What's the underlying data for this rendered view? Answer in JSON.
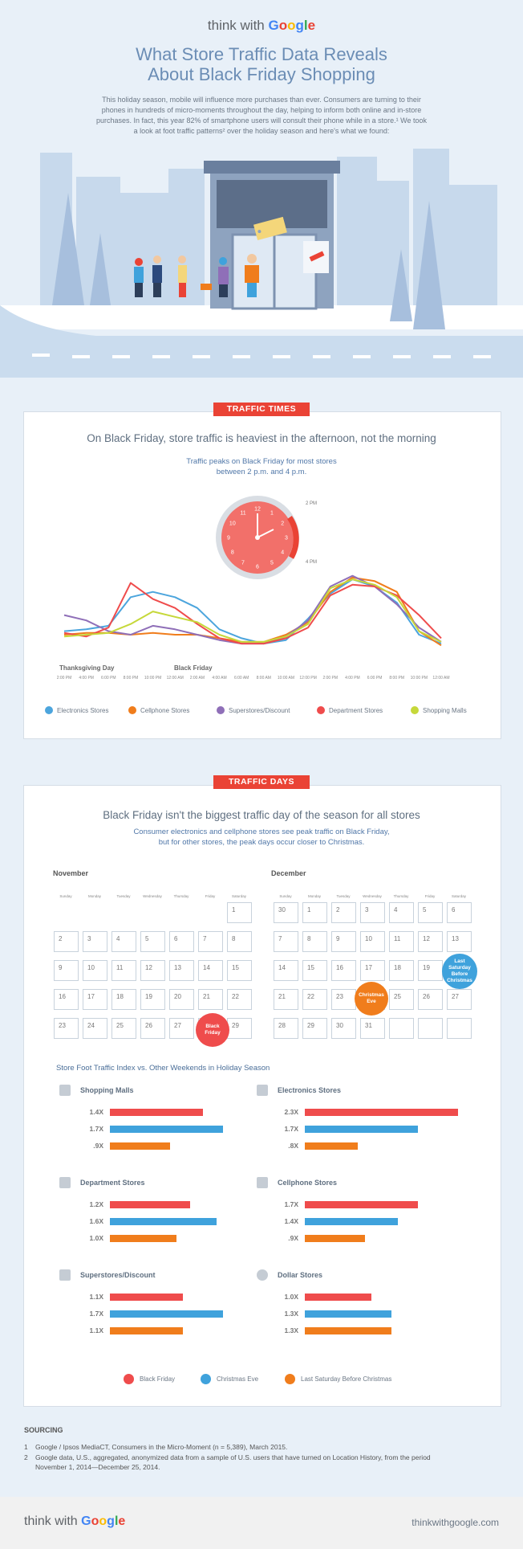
{
  "header": {
    "brand_prefix": "think with ",
    "brand_name": "Google"
  },
  "title": [
    "What Store Traffic Data Reveals",
    "About Black Friday Shopping"
  ],
  "intro": "This holiday season, mobile will influence more purchases than ever. Consumers are turning to their phones in hundreds of micro-moments throughout the day, helping to inform both online and in-store purchases. In fact, this year 82% of smartphone users will consult their phone while in a store.¹ We took a look at foot traffic patterns² over the holiday season and here's what we found:",
  "colors": {
    "electronics": "#4ca5dd",
    "cellphone": "#f07d1c",
    "superstores": "#8f6fb8",
    "department": "#ef4c4c",
    "malls": "#c6d83a",
    "blue_bar": "#3fa2dc"
  },
  "traffic_times": {
    "tag": "TRAFFIC TIMES",
    "headline": "On Black Friday, store traffic is heaviest in the afternoon, not the morning",
    "subline": [
      "Traffic peaks on Black Friday for most stores",
      "between 2 p.m. and 4 p.m."
    ],
    "clock": {
      "label_2pm": "2 PM",
      "label_4pm": "4 PM",
      "numbers": [
        "12",
        "1",
        "2",
        "3",
        "4",
        "5",
        "6",
        "7",
        "8",
        "9",
        "10",
        "11"
      ]
    },
    "day_labels": [
      "Thanksgiving Day",
      "Black Friday"
    ]
  },
  "chart_data": {
    "type": "line",
    "x": [
      "2:00 PM",
      "4:00 PM",
      "6:00 PM",
      "8:00 PM",
      "10:00 PM",
      "12:00 AM",
      "2:00 AM",
      "4:00 AM",
      "6:00 AM",
      "8:00 AM",
      "10:00 AM",
      "12:00 PM",
      "2:00 PM",
      "4:00 PM",
      "6:00 PM",
      "8:00 PM",
      "10:00 PM",
      "12:00 AM"
    ],
    "series": [
      {
        "name": "Electronics Stores",
        "values": [
          11,
          12,
          14,
          30,
          33,
          30,
          24,
          12,
          7,
          4,
          6,
          18,
          32,
          40,
          36,
          27,
          9,
          4
        ]
      },
      {
        "name": "Cellphone Stores",
        "values": [
          9,
          10,
          10,
          9,
          10,
          9,
          9,
          7,
          5,
          5,
          9,
          16,
          33,
          41,
          39,
          33,
          11,
          3
        ]
      },
      {
        "name": "Superstores/Discount",
        "values": [
          20,
          17,
          11,
          9,
          14,
          12,
          9,
          6,
          4,
          4,
          8,
          17,
          36,
          42,
          36,
          26,
          13,
          5
        ]
      },
      {
        "name": "Department Stores",
        "values": [
          10,
          8,
          13,
          38,
          29,
          24,
          15,
          7,
          4,
          4,
          7,
          13,
          31,
          37,
          36,
          31,
          20,
          7
        ]
      },
      {
        "name": "Shopping Malls",
        "values": [
          8,
          9,
          10,
          15,
          22,
          19,
          16,
          9,
          5,
          5,
          8,
          15,
          35,
          40,
          37,
          30,
          11,
          5
        ]
      }
    ],
    "ylim": [
      0,
      45
    ]
  },
  "traffic_days": {
    "tag": "TRAFFIC DAYS",
    "headline": "Black Friday isn't the biggest traffic day of the season for all stores",
    "subline": [
      "Consumer electronics and cellphone stores see peak traffic on Black Friday,",
      "but for other stores, the peak days occur closer to Christmas."
    ],
    "november": {
      "label": "November",
      "weekdays": [
        "Sunday",
        "Monday",
        "Tuesday",
        "Wednesday",
        "Thursday",
        "Friday",
        "Saturday"
      ],
      "days": [
        "",
        "",
        "",
        "",
        "",
        "",
        "1",
        "2",
        "3",
        "4",
        "5",
        "6",
        "7",
        "8",
        "9",
        "10",
        "11",
        "12",
        "13",
        "14",
        "15",
        "16",
        "17",
        "18",
        "19",
        "20",
        "21",
        "22",
        "23",
        "24",
        "25",
        "26",
        "27",
        "",
        "29"
      ]
    },
    "december": {
      "label": "December",
      "weekdays": [
        "Sunday",
        "Monday",
        "Tuesday",
        "Wednesday",
        "Thursday",
        "Friday",
        "Saturday"
      ],
      "days": [
        "30",
        "1",
        "2",
        "3",
        "4",
        "5",
        "6",
        "7",
        "8",
        "9",
        "10",
        "11",
        "12",
        "13",
        "14",
        "15",
        "16",
        "17",
        "18",
        "19",
        "",
        "21",
        "22",
        "23",
        "",
        "25",
        "26",
        "27",
        "28",
        "29",
        "30",
        "31",
        "",
        "",
        ""
      ]
    },
    "black_friday": "Black Friday",
    "christmas_eve": "Christmas Eve",
    "last_saturday": "Last Saturday Before Christmas",
    "index_title": "Store Foot Traffic Index vs. Other Weekends in Holiday Season",
    "categories": [
      {
        "name": "Shopping Malls",
        "icon": "shopping-bag-icon",
        "values": [
          "1.4X",
          "1.7X",
          ".9X"
        ],
        "nums": [
          1.4,
          1.7,
          0.9
        ]
      },
      {
        "name": "Electronics Stores",
        "icon": "plug-icon",
        "values": [
          "2.3X",
          "1.7X",
          ".8X"
        ],
        "nums": [
          2.3,
          1.7,
          0.8
        ]
      },
      {
        "name": "Department Stores",
        "icon": "store-icon",
        "values": [
          "1.2X",
          "1.6X",
          "1.0X"
        ],
        "nums": [
          1.2,
          1.6,
          1.0
        ]
      },
      {
        "name": "Cellphone Stores",
        "icon": "phone-icon",
        "values": [
          "1.7X",
          "1.4X",
          ".9X"
        ],
        "nums": [
          1.7,
          1.4,
          0.9
        ]
      },
      {
        "name": "Superstores/Discount",
        "icon": "price-tag-icon",
        "values": [
          "1.1X",
          "1.7X",
          "1.1X"
        ],
        "nums": [
          1.1,
          1.7,
          1.1
        ]
      },
      {
        "name": "Dollar Stores",
        "icon": "dollar-icon",
        "values": [
          "1.0X",
          "1.3X",
          "1.3X"
        ],
        "nums": [
          1.0,
          1.3,
          1.3
        ]
      }
    ],
    "legend": [
      "Black Friday",
      "Christmas Eve",
      "Last Saturday Before Christmas"
    ]
  },
  "sourcing": {
    "title": "SOURCING",
    "items": [
      "Google / Ipsos MediaCT, Consumers in the Micro-Moment (n = 5,389), March 2015.",
      "Google data, U.S., aggregated, anonymized data from a sample of U.S. users that have turned on Location History, from the period November 1, 2014—December 25, 2014."
    ],
    "numbers": [
      "1",
      "2"
    ]
  },
  "footer": {
    "brand_prefix": "think with ",
    "brand_name": "Google",
    "url": "thinkwithgoogle.com"
  }
}
